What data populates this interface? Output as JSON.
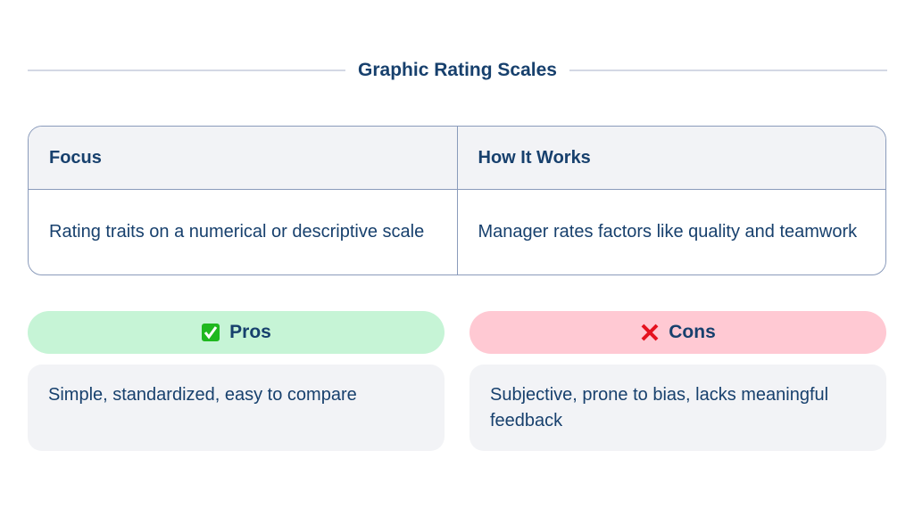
{
  "title": "Graphic Rating Scales",
  "table": {
    "headers": [
      "Focus",
      "How It Works"
    ],
    "row": [
      "Rating traits on a numerical or descriptive scale",
      "Manager rates factors like quality and teamwork"
    ]
  },
  "pros": {
    "label": "Pros",
    "icon": "check-mark-button-icon",
    "color": "#c6f4d6",
    "text": "Simple, standardized, easy to compare"
  },
  "cons": {
    "label": "Cons",
    "icon": "cross-mark-icon",
    "color": "#ffc9d3",
    "text": "Subjective, prone to bias, lacks meaningful feedback"
  }
}
